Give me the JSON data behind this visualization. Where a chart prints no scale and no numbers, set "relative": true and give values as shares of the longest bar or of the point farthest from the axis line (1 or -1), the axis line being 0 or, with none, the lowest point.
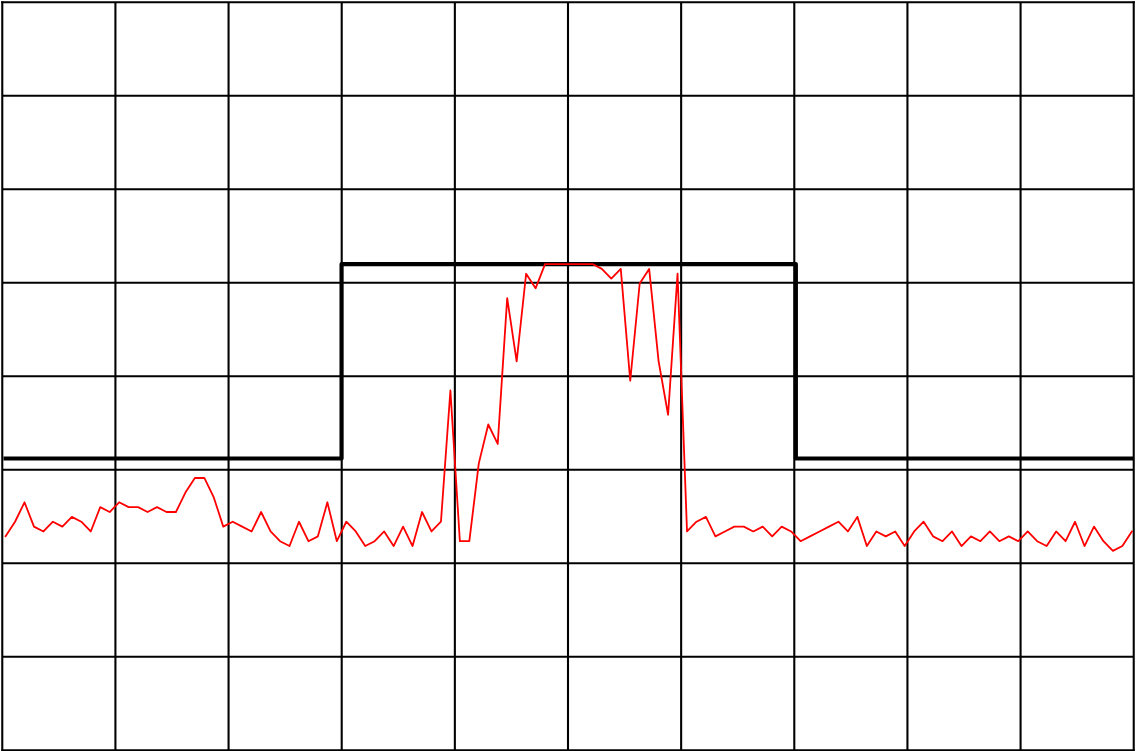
{
  "chart_data": {
    "type": "line",
    "relative": true,
    "grid": true,
    "categories": [
      null,
      null,
      null,
      null,
      null,
      null,
      null,
      null,
      null,
      null,
      null,
      null,
      null,
      null,
      null,
      null,
      null,
      null,
      null,
      null,
      null,
      null,
      null,
      null,
      null,
      null,
      null,
      null,
      null,
      null,
      null,
      null,
      null,
      null,
      null,
      null,
      null,
      null,
      null,
      null,
      null,
      null,
      null,
      null,
      null,
      null,
      null,
      null,
      null,
      null,
      null,
      null,
      null,
      null,
      null,
      null,
      null,
      null,
      null,
      null,
      null,
      null,
      null,
      null,
      null,
      null,
      null,
      null,
      null,
      null,
      null,
      null,
      null,
      null,
      null,
      null,
      null,
      null,
      null,
      null,
      null,
      null,
      null,
      null,
      null,
      null,
      null,
      null,
      null,
      null,
      null,
      null,
      null,
      null,
      null,
      null,
      null,
      null,
      null,
      null,
      null,
      null,
      null,
      null,
      null,
      null,
      null,
      null,
      null,
      null,
      null,
      null,
      null,
      null,
      null,
      null,
      null,
      null,
      null,
      null
    ],
    "series": [
      {
        "type": "step",
        "color": "#000000",
        "values": [
          0.6,
          0.6,
          0.6,
          0.6,
          0.6,
          0.6,
          0.6,
          0.6,
          0.6,
          0.6,
          0.6,
          0.6,
          0.6,
          0.6,
          0.6,
          0.6,
          0.6,
          0.6,
          0.6,
          0.6,
          0.6,
          0.6,
          0.6,
          0.6,
          0.6,
          0.6,
          0.6,
          0.6,
          0.6,
          0.6,
          0.6,
          0.6,
          0.6,
          0.6,
          0.6,
          0.6,
          1.0,
          1.0,
          1.0,
          1.0,
          1.0,
          1.0,
          1.0,
          1.0,
          1.0,
          1.0,
          1.0,
          1.0,
          1.0,
          1.0,
          1.0,
          1.0,
          1.0,
          1.0,
          1.0,
          1.0,
          1.0,
          1.0,
          1.0,
          1.0,
          1.0,
          1.0,
          1.0,
          1.0,
          1.0,
          1.0,
          1.0,
          1.0,
          1.0,
          1.0,
          1.0,
          1.0,
          1.0,
          1.0,
          1.0,
          1.0,
          1.0,
          1.0,
          1.0,
          1.0,
          1.0,
          1.0,
          1.0,
          1.0,
          0.6,
          0.6,
          0.6,
          0.6,
          0.6,
          0.6,
          0.6,
          0.6,
          0.6,
          0.6,
          0.6,
          0.6,
          0.6,
          0.6,
          0.6,
          0.6,
          0.6,
          0.6,
          0.6,
          0.6,
          0.6,
          0.6,
          0.6,
          0.6,
          0.6,
          0.6,
          0.6,
          0.6,
          0.6,
          0.6,
          0.6,
          0.6,
          0.6,
          0.6,
          0.6,
          0.6
        ]
      },
      {
        "color": "#ff0000",
        "values": [
          0.44,
          0.47,
          0.51,
          0.46,
          0.45,
          0.47,
          0.46,
          0.48,
          0.47,
          0.45,
          0.5,
          0.49,
          0.51,
          0.5,
          0.5,
          0.49,
          0.5,
          0.49,
          0.49,
          0.53,
          0.56,
          0.56,
          0.52,
          0.46,
          0.47,
          0.46,
          0.45,
          0.49,
          0.45,
          0.43,
          0.42,
          0.47,
          0.43,
          0.44,
          0.51,
          0.43,
          0.47,
          0.45,
          0.42,
          0.43,
          0.45,
          0.42,
          0.46,
          0.42,
          0.49,
          0.45,
          0.47,
          0.74,
          0.43,
          0.43,
          0.59,
          0.67,
          0.63,
          0.93,
          0.8,
          0.98,
          0.95,
          1.0,
          1.0,
          1.0,
          1.0,
          1.0,
          1.0,
          0.99,
          0.97,
          0.99,
          0.76,
          0.96,
          0.99,
          0.8,
          0.69,
          0.98,
          0.45,
          0.47,
          0.48,
          0.44,
          0.45,
          0.46,
          0.46,
          0.45,
          0.46,
          0.44,
          0.46,
          0.45,
          0.43,
          0.44,
          0.45,
          0.46,
          0.47,
          0.45,
          0.48,
          0.42,
          0.45,
          0.44,
          0.45,
          0.42,
          0.45,
          0.47,
          0.44,
          0.43,
          0.45,
          0.42,
          0.44,
          0.43,
          0.45,
          0.43,
          0.44,
          0.43,
          0.45,
          0.43,
          0.42,
          0.45,
          0.43,
          0.47,
          0.42,
          0.46,
          0.43,
          0.41,
          0.42,
          0.45
        ]
      }
    ]
  }
}
